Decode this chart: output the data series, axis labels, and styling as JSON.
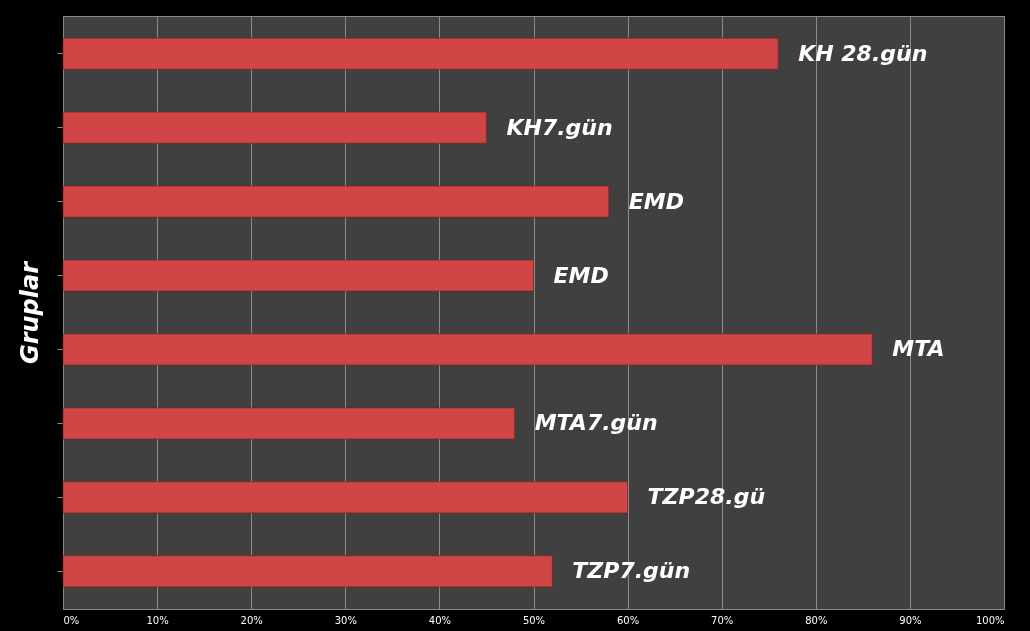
{
  "chart_data": {
    "type": "bar",
    "orientation": "horizontal",
    "ylabel": "Gruplar",
    "categories": [
      "KH 28.gün",
      "KH7.gün",
      "EMD",
      "EMD",
      "MTA",
      "MTA7.gün",
      "TZP28.gü",
      "TZP7.gün"
    ],
    "values": [
      76,
      45,
      58,
      50,
      86,
      48,
      60,
      52
    ],
    "color": "#d04545",
    "xlim": [
      0,
      100
    ],
    "xticks": [
      {
        "value": 0,
        "label": "0%"
      },
      {
        "value": 10,
        "label": "10%"
      },
      {
        "value": 20,
        "label": "20%"
      },
      {
        "value": 30,
        "label": "30%"
      },
      {
        "value": 40,
        "label": "40%"
      },
      {
        "value": 50,
        "label": "50%"
      },
      {
        "value": 60,
        "label": "60%"
      },
      {
        "value": 70,
        "label": "70%"
      },
      {
        "value": 80,
        "label": "80%"
      },
      {
        "value": 90,
        "label": "90%"
      },
      {
        "value": 100,
        "label": "100%"
      }
    ],
    "grid": "x",
    "tick_labels": "x"
  }
}
